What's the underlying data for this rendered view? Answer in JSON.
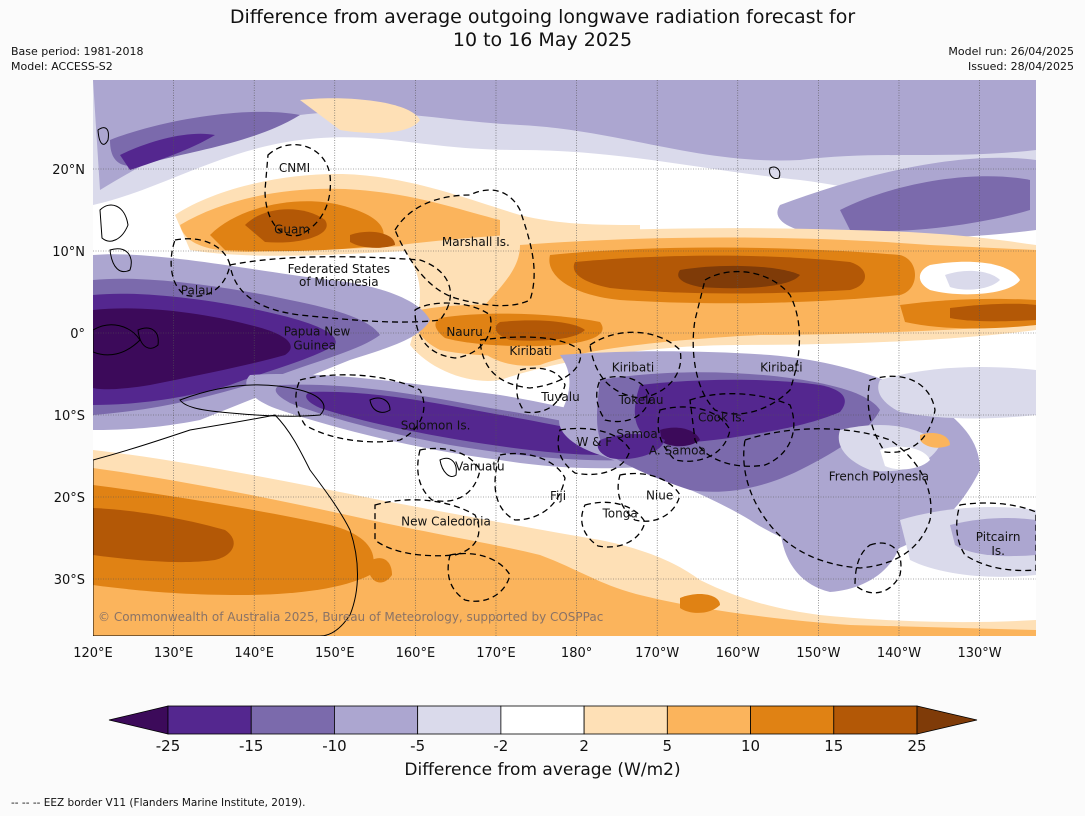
{
  "title": {
    "line1": "Difference from average outgoing longwave radiation forecast for",
    "line2": "10 to 16 May 2025"
  },
  "meta_left": {
    "base_period": "Base period: 1981-2018",
    "model": "Model: ACCESS-S2"
  },
  "meta_right": {
    "model_run": "Model run: 26/04/2025",
    "issued": "Issued: 28/04/2025"
  },
  "axes": {
    "lon_labels": [
      "120°E",
      "130°E",
      "140°E",
      "150°E",
      "160°E",
      "170°E",
      "180°",
      "170°W",
      "160°W",
      "150°W",
      "140°W",
      "130°W"
    ],
    "lat_labels": [
      "20°N",
      "10°N",
      "0°",
      "10°S",
      "20°S",
      "30°S"
    ]
  },
  "places": [
    {
      "name": "CNMI",
      "lon": 145.0,
      "lat": 20.1
    },
    {
      "name": "Guam",
      "lon": 144.7,
      "lat": 12.6
    },
    {
      "name": "Marshall Is.",
      "lon": 167.5,
      "lat": 11.1
    },
    {
      "name": "Federated States",
      "lon": 150.5,
      "lat": 7.8
    },
    {
      "name": "of Micronesia",
      "lon": 150.5,
      "lat": 6.2
    },
    {
      "name": "Palau",
      "lon": 132.9,
      "lat": 5.2
    },
    {
      "name": "Papua New",
      "lon": 147.8,
      "lat": 0.2
    },
    {
      "name": "Guinea",
      "lon": 147.5,
      "lat": -1.5
    },
    {
      "name": "Nauru",
      "lon": 166.1,
      "lat": 0.1
    },
    {
      "name": "Kiribati",
      "lon": 174.3,
      "lat": -2.2
    },
    {
      "name": "Kiribati",
      "lon": 187.0,
      "lat": -4.2
    },
    {
      "name": "Kiribati",
      "lon": 205.4,
      "lat": -4.2
    },
    {
      "name": "Tuvalu",
      "lon": 178.0,
      "lat": -7.8
    },
    {
      "name": "Tokelau",
      "lon": 188.0,
      "lat": -8.2
    },
    {
      "name": "Solomon Is.",
      "lon": 162.5,
      "lat": -11.3
    },
    {
      "name": "Cook Is.",
      "lon": 198.0,
      "lat": -10.3
    },
    {
      "name": "Samoa",
      "lon": 187.5,
      "lat": -12.3
    },
    {
      "name": "W & F",
      "lon": 182.2,
      "lat": -13.3
    },
    {
      "name": "A. Samoa",
      "lon": 192.5,
      "lat": -14.3
    },
    {
      "name": "Vanuatu",
      "lon": 168.0,
      "lat": -16.3
    },
    {
      "name": "French Polynesia",
      "lon": 217.5,
      "lat": -17.5
    },
    {
      "name": "Fiji",
      "lon": 177.7,
      "lat": -19.9
    },
    {
      "name": "Niue",
      "lon": 190.3,
      "lat": -19.8
    },
    {
      "name": "Tonga",
      "lon": 185.4,
      "lat": -22.0
    },
    {
      "name": "New Caledonia",
      "lon": 163.8,
      "lat": -23.0
    },
    {
      "name": "Pitcairn",
      "lon": 232.3,
      "lat": -24.9
    },
    {
      "name": "Is.",
      "lon": 232.3,
      "lat": -26.6
    }
  ],
  "copyright": "© Commonwealth of Australia 2025, Bureau of Meteorology, supported by COSPPac",
  "colorbar": {
    "ticks": [
      "-25",
      "-15",
      "-10",
      "-5",
      "-2",
      "2",
      "5",
      "10",
      "15",
      "25"
    ],
    "colors": [
      "#3c0a5a",
      "#54278f",
      "#7b6aac",
      "#aca6d0",
      "#dadaeb",
      "#ffffff",
      "#fee0b6",
      "#fbb45c",
      "#e08214",
      "#b35806",
      "#7f3b08"
    ],
    "caption": "Difference from average (W/m2)"
  },
  "footer": "--  --  -- EEZ border V11 (Flanders Marine Institute, 2019).",
  "color_scheme": {
    "background": "#fbfbfb",
    "land_outline": "#000000",
    "eez_border": "#000000"
  }
}
